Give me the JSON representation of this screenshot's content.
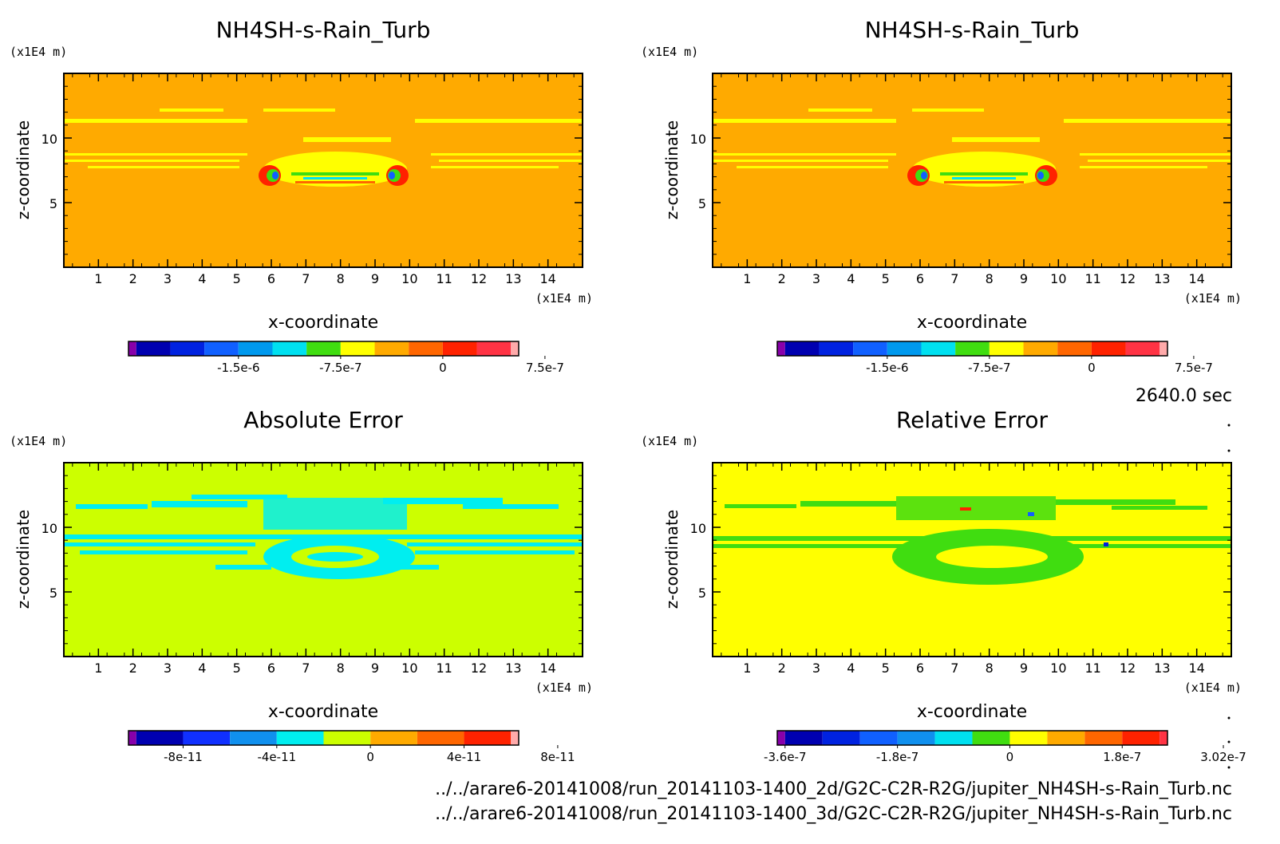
{
  "time_label": "2640.0 sec",
  "footer": {
    "line1": "../../arare6-20141008/run_20141103-1400_2d/G2C-C2R-R2G/jupiter_NH4SH-s-Rain_Turb.nc",
    "line2": "../../arare6-20141008/run_20141103-1400_3d/G2C-C2R-R2G/jupiter_NH4SH-s-Rain_Turb.nc"
  },
  "chart_data": [
    {
      "type": "heatmap",
      "title": "NH4SH-s-Rain_Turb",
      "xlabel": "x-coordinate",
      "ylabel": "z-coordinate",
      "x_unit": "(x1E4 m)",
      "y_unit": "(x1E4 m)",
      "xlim": [
        0,
        15
      ],
      "ylim": [
        0,
        15
      ],
      "x_ticks": [
        "1",
        "2",
        "3",
        "4",
        "5",
        "6",
        "7",
        "8",
        "9",
        "10",
        "11",
        "12",
        "13",
        "14"
      ],
      "y_ticks": [
        "5",
        "10"
      ],
      "colorbar": {
        "colors": [
          "#8800aa",
          "#0000b0",
          "#0022e0",
          "#1060ff",
          "#0099ee",
          "#00e0f0",
          "#40dd10",
          "#ffff00",
          "#ffaa00",
          "#ff6600",
          "#ff2200",
          "#ff3344",
          "#ffaaaa"
        ],
        "labels": [
          "-1.5e-6",
          "-7.5e-7",
          "0",
          "7.5e-7"
        ],
        "label_positions": [
          3,
          6,
          9,
          12
        ]
      },
      "background": "#ffaa00"
    },
    {
      "type": "heatmap",
      "title": "NH4SH-s-Rain_Turb",
      "xlabel": "x-coordinate",
      "ylabel": "z-coordinate",
      "x_unit": "(x1E4 m)",
      "y_unit": "(x1E4 m)",
      "xlim": [
        0,
        15
      ],
      "ylim": [
        0,
        15
      ],
      "x_ticks": [
        "1",
        "2",
        "3",
        "4",
        "5",
        "6",
        "7",
        "8",
        "9",
        "10",
        "11",
        "12",
        "13",
        "14"
      ],
      "y_ticks": [
        "5",
        "10"
      ],
      "colorbar": {
        "colors": [
          "#8800aa",
          "#0000b0",
          "#0022e0",
          "#1060ff",
          "#0099ee",
          "#00e0f0",
          "#40dd10",
          "#ffff00",
          "#ffaa00",
          "#ff6600",
          "#ff2200",
          "#ff3344",
          "#ffaaaa"
        ],
        "labels": [
          "-1.5e-6",
          "-7.5e-7",
          "0",
          "7.5e-7"
        ],
        "label_positions": [
          3,
          6,
          9,
          12
        ]
      },
      "background": "#ffaa00"
    },
    {
      "type": "heatmap",
      "title": "Absolute Error",
      "xlabel": "x-coordinate",
      "ylabel": "z-coordinate",
      "x_unit": "(x1E4 m)",
      "y_unit": "(x1E4 m)",
      "xlim": [
        0,
        15
      ],
      "ylim": [
        0,
        15
      ],
      "x_ticks": [
        "1",
        "2",
        "3",
        "4",
        "5",
        "6",
        "7",
        "8",
        "9",
        "10",
        "11",
        "12",
        "13",
        "14"
      ],
      "y_ticks": [
        "5",
        "10"
      ],
      "colorbar": {
        "colors": [
          "#8800aa",
          "#0000b0",
          "#1030ff",
          "#1090ee",
          "#00eef0",
          "#ccff00",
          "#ffaa00",
          "#ff6600",
          "#ff2200",
          "#ffaaaa"
        ],
        "labels": [
          "-8e-11",
          "-4e-11",
          "0",
          "4e-11",
          "8e-11"
        ],
        "label_positions": [
          1,
          3,
          5,
          7,
          9
        ]
      },
      "background": "#ccff00"
    },
    {
      "type": "heatmap",
      "title": "Relative Error",
      "xlabel": "x-coordinate",
      "ylabel": "z-coordinate",
      "x_unit": "(x1E4 m)",
      "y_unit": "(x1E4 m)",
      "xlim": [
        0,
        15
      ],
      "ylim": [
        0,
        15
      ],
      "x_ticks": [
        "1",
        "2",
        "3",
        "4",
        "5",
        "6",
        "7",
        "8",
        "9",
        "10",
        "11",
        "12",
        "13",
        "14"
      ],
      "y_ticks": [
        "5",
        "10"
      ],
      "colorbar": {
        "colors": [
          "#8800aa",
          "#0000b0",
          "#0022e0",
          "#1060ff",
          "#1090ee",
          "#00e0f0",
          "#40dd10",
          "#ffff00",
          "#ffaa00",
          "#ff6600",
          "#ff2200",
          "#ff3344"
        ],
        "labels": [
          "-3.6e-7",
          "-1.8e-7",
          "0",
          "1.8e-7",
          "3.02e-7"
        ],
        "label_positions": [
          0,
          3,
          6,
          9,
          11.7
        ]
      },
      "background": "#ffff00"
    }
  ]
}
